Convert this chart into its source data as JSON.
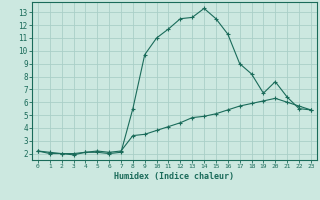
{
  "xlabel": "Humidex (Indice chaleur)",
  "background_color": "#cce8e0",
  "grid_color": "#aacfc8",
  "line_color": "#1a6b5a",
  "xlim": [
    -0.5,
    23.5
  ],
  "ylim": [
    1.5,
    13.8
  ],
  "xticks": [
    0,
    1,
    2,
    3,
    4,
    5,
    6,
    7,
    8,
    9,
    10,
    11,
    12,
    13,
    14,
    15,
    16,
    17,
    18,
    19,
    20,
    21,
    22,
    23
  ],
  "yticks": [
    2,
    3,
    4,
    5,
    6,
    7,
    8,
    9,
    10,
    11,
    12,
    13
  ],
  "curve1_x": [
    0,
    1,
    2,
    3,
    4,
    5,
    6,
    7,
    8,
    9,
    10,
    11,
    12,
    13,
    14,
    15,
    16,
    17,
    18,
    19,
    20,
    21,
    22,
    23
  ],
  "curve1_y": [
    2.2,
    2.0,
    2.0,
    1.9,
    2.1,
    2.1,
    2.0,
    2.1,
    5.5,
    9.7,
    11.0,
    11.7,
    12.5,
    12.6,
    13.3,
    12.5,
    11.3,
    9.0,
    8.2,
    6.7,
    7.6,
    6.4,
    5.5,
    5.4
  ],
  "curve2_x": [
    0,
    1,
    2,
    3,
    4,
    5,
    6,
    7,
    8,
    9,
    10,
    11,
    12,
    13,
    14,
    15,
    16,
    17,
    18,
    19,
    20,
    21,
    22,
    23
  ],
  "curve2_y": [
    2.2,
    2.1,
    2.0,
    2.0,
    2.1,
    2.2,
    2.1,
    2.2,
    3.4,
    3.5,
    3.8,
    4.1,
    4.4,
    4.8,
    4.9,
    5.1,
    5.4,
    5.7,
    5.9,
    6.1,
    6.3,
    6.0,
    5.7,
    5.4
  ]
}
